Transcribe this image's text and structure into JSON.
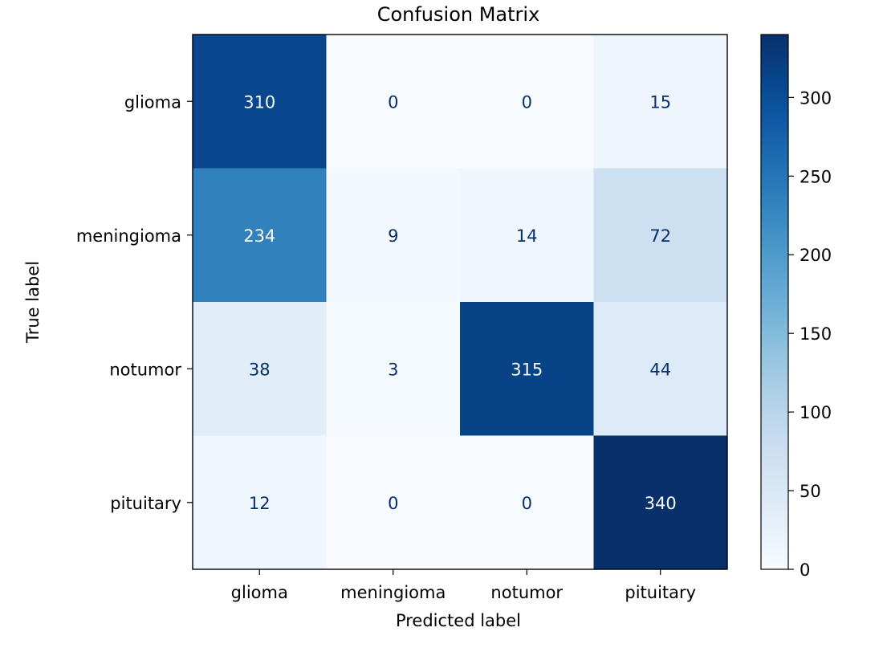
{
  "chart_data": {
    "type": "heatmap",
    "title": "Confusion Matrix",
    "xlabel": "Predicted label",
    "ylabel": "True label",
    "x_categories": [
      "glioma",
      "meningioma",
      "notumor",
      "pituitary"
    ],
    "y_categories": [
      "glioma",
      "meningioma",
      "notumor",
      "pituitary"
    ],
    "values": [
      [
        310,
        0,
        0,
        15
      ],
      [
        234,
        9,
        14,
        72
      ],
      [
        38,
        3,
        315,
        44
      ],
      [
        12,
        0,
        0,
        340
      ]
    ],
    "colormap": "Blues",
    "color_range": [
      0,
      340
    ],
    "colorbar_ticks": [
      0,
      50,
      100,
      150,
      200,
      250,
      300
    ],
    "grid": false
  }
}
